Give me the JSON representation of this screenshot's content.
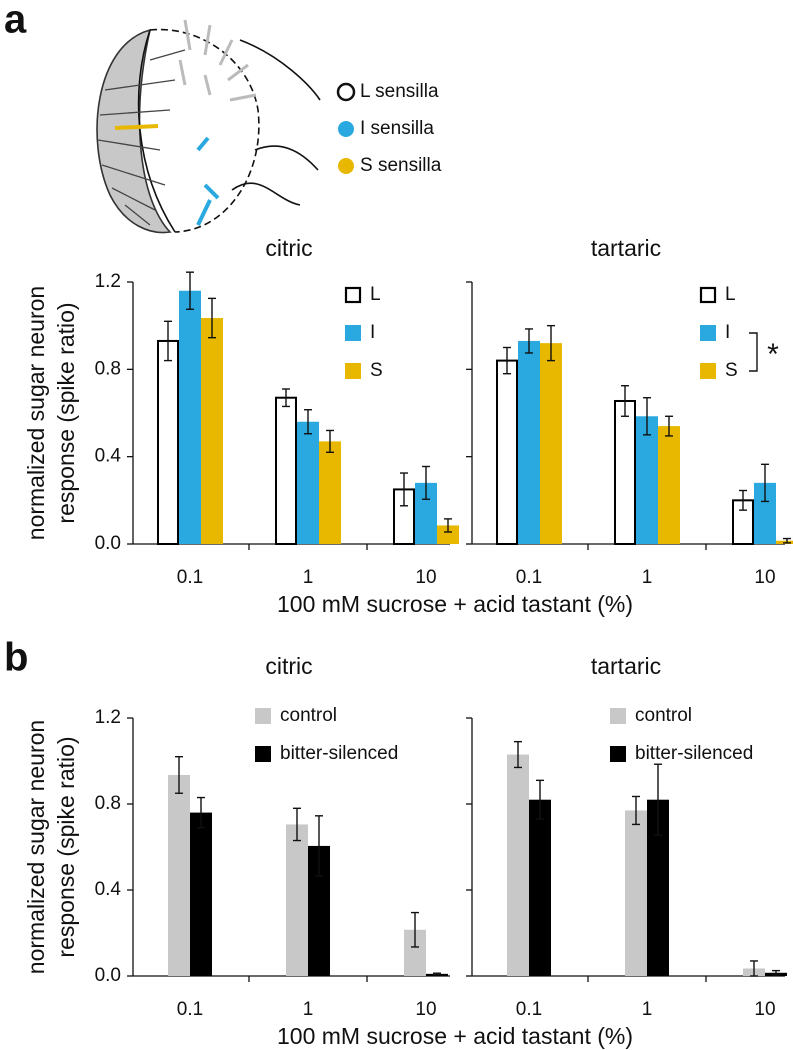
{
  "panels": [
    {
      "label": "a",
      "sensilla_legend": [
        "L sensilla",
        "I sensilla",
        "S sensilla"
      ],
      "sensilla_colors": [
        "#ffffff",
        "#2aa9e0",
        "#e8b800"
      ]
    },
    {
      "label": "b"
    }
  ],
  "chart_data": [
    {
      "type": "bar",
      "title": "citric",
      "categories": [
        "0.1",
        "1",
        "10"
      ],
      "ylabel": [
        "normalized sugar neuron",
        "response (spike ratio)"
      ],
      "xlabel": "100 mM sucrose + acid tastant (%)",
      "series": [
        {
          "name": "L",
          "color": "#ffffff",
          "edgecolor": "#000000",
          "values": [
            0.93,
            0.67,
            0.25
          ],
          "errors": [
            0.09,
            0.04,
            0.075
          ]
        },
        {
          "name": "I",
          "color": "#2aa9e0",
          "values": [
            1.16,
            0.56,
            0.28
          ],
          "errors": [
            0.085,
            0.055,
            0.075
          ]
        },
        {
          "name": "S",
          "color": "#e8b800",
          "values": [
            1.035,
            0.47,
            0.085
          ],
          "errors": [
            0.09,
            0.05,
            0.03
          ]
        }
      ],
      "ylim": [
        0,
        1.2
      ],
      "yticks": [
        {
          "value": 0,
          "label": "0.0"
        },
        0.4,
        0.8,
        1.2
      ],
      "ytick_labels": true,
      "legend": "top-right"
    },
    {
      "type": "bar",
      "title": "tartaric",
      "categories": [
        "0.1",
        "1",
        "10"
      ],
      "series": [
        {
          "name": "L",
          "color": "#ffffff",
          "edgecolor": "#000000",
          "values": [
            0.84,
            0.655,
            0.2
          ],
          "errors": [
            0.06,
            0.07,
            0.045
          ]
        },
        {
          "name": "I",
          "color": "#2aa9e0",
          "values": [
            0.93,
            0.585,
            0.28
          ],
          "errors": [
            0.055,
            0.085,
            0.085
          ]
        },
        {
          "name": "S",
          "color": "#e8b800",
          "values": [
            0.92,
            0.54,
            0.015
          ],
          "errors": [
            0.08,
            0.045,
            0.01
          ]
        }
      ],
      "annotations": [
        "*"
      ],
      "ylim": [
        0,
        1.2
      ],
      "yticks": [
        0,
        0.4,
        0.8,
        1.2
      ],
      "ytick_labels": false,
      "legend": "top-right"
    },
    {
      "type": "bar",
      "title": "citric",
      "categories": [
        "0.1",
        "1",
        "10"
      ],
      "ylabel": [
        "normalized sugar neuron",
        "response (spike ratio)"
      ],
      "xlabel": "100 mM sucrose + acid tastant (%)",
      "series": [
        {
          "name": "control",
          "color": "#c8c8c8",
          "values": [
            0.935,
            0.705,
            0.215
          ],
          "errors": [
            0.085,
            0.075,
            0.08
          ]
        },
        {
          "name": "bitter-silenced",
          "color": "#000000",
          "values": [
            0.76,
            0.605,
            0.01
          ],
          "errors": [
            0.07,
            0.14,
            0.003
          ]
        }
      ],
      "ylim": [
        0,
        1.2
      ],
      "yticks": [
        {
          "value": 0,
          "label": "0.0"
        },
        0.4,
        0.8,
        1.2
      ],
      "ytick_labels": true,
      "legend": "top-right"
    },
    {
      "type": "bar",
      "title": "tartaric",
      "categories": [
        "0.1",
        "1",
        "10"
      ],
      "series": [
        {
          "name": "control",
          "color": "#c8c8c8",
          "values": [
            1.03,
            0.77,
            0.035
          ],
          "errors": [
            0.06,
            0.065,
            0.035
          ]
        },
        {
          "name": "bitter-silenced",
          "color": "#000000",
          "values": [
            0.82,
            0.82,
            0.015
          ],
          "errors": [
            0.09,
            0.165,
            0.01
          ]
        }
      ],
      "ylim": [
        0,
        1.2
      ],
      "yticks": [
        0,
        0.4,
        0.8,
        1.2
      ],
      "ytick_labels": false,
      "legend": "top-right"
    }
  ]
}
